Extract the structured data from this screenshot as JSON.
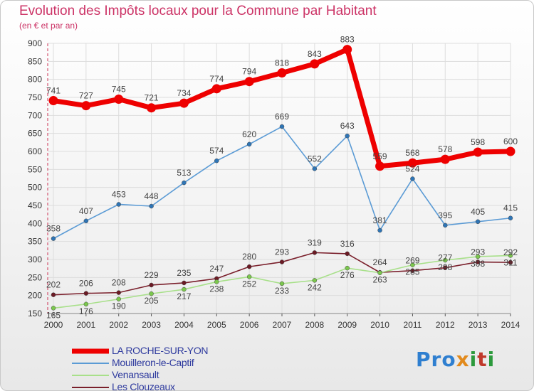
{
  "title": "Evolution des Impôts locaux pour la Commune par Habitant",
  "subtitle": "(en € et par an)",
  "logo": {
    "p": "Pro",
    "x": "x",
    "i": "i",
    "t": "t",
    "i2": "i"
  },
  "chart_data": {
    "type": "line",
    "title": "Evolution des Impôts locaux pour la Commune par Habitant",
    "subtitle": "(en € et par an)",
    "x": [
      2000,
      2001,
      2002,
      2003,
      2004,
      2005,
      2006,
      2007,
      2008,
      2009,
      2010,
      2011,
      2012,
      2013,
      2014
    ],
    "ylim": [
      150,
      900
    ],
    "yticks": [
      150,
      200,
      250,
      300,
      350,
      400,
      450,
      500,
      550,
      600,
      650,
      700,
      750,
      800,
      850,
      900
    ],
    "grid": true,
    "series": [
      {
        "name": "LA ROCHE-SUR-YON",
        "color": "#ee0000",
        "width": 7,
        "marker": 6,
        "values": [
          741,
          727,
          745,
          721,
          734,
          774,
          794,
          818,
          843,
          883,
          559,
          568,
          578,
          598,
          600
        ]
      },
      {
        "name": "Mouilleron-le-Captif",
        "color": "#5b9bd5",
        "marker_color": "#2e75b6",
        "width": 1.6,
        "marker": 3,
        "values": [
          358,
          407,
          453,
          448,
          513,
          574,
          620,
          669,
          552,
          643,
          381,
          524,
          395,
          405,
          415
        ]
      },
      {
        "name": "Venansault",
        "color": "#a8e08a",
        "marker_color": "#7bc74d",
        "width": 1.6,
        "marker": 3,
        "values": [
          165,
          176,
          190,
          205,
          217,
          238,
          252,
          233,
          242,
          276,
          263,
          285,
          298,
          308,
          311
        ]
      },
      {
        "name": "Les Clouzeaux",
        "color": "#7a1f2b",
        "marker_color": "#6b1a24",
        "width": 1.6,
        "marker": 3,
        "values": [
          202,
          206,
          208,
          229,
          235,
          247,
          280,
          293,
          319,
          316,
          264,
          269,
          277,
          293,
          292
        ]
      }
    ],
    "legend": "bottom-left"
  }
}
